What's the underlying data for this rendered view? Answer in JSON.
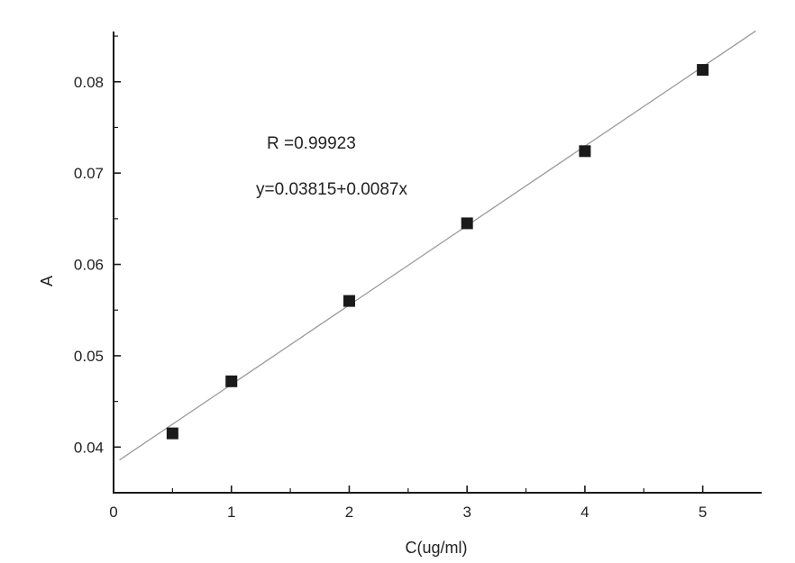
{
  "chart_data": {
    "type": "scatter",
    "title": "",
    "xlabel": "C(ug/ml)",
    "ylabel": "A",
    "xlim": [
      0,
      5.5
    ],
    "ylim": [
      0.035,
      0.0855
    ],
    "xticks": [
      0,
      1,
      2,
      3,
      4,
      5
    ],
    "xtick_labels": [
      "0",
      "1",
      "2",
      "3",
      "4",
      "5"
    ],
    "yticks": [
      0.04,
      0.05,
      0.06,
      0.07,
      0.08
    ],
    "ytick_labels": [
      "0.04",
      "0.05",
      "0.06",
      "0.07",
      "0.08"
    ],
    "grid": false,
    "series": [
      {
        "x": [
          0.5,
          1,
          2,
          3,
          4,
          5
        ],
        "y": [
          0.0415,
          0.0472,
          0.056,
          0.0645,
          0.0724,
          0.0813
        ],
        "marker": "square",
        "color": "#1a1a1a"
      }
    ],
    "fit_line": {
      "intercept": 0.03815,
      "slope": 0.0087,
      "x_range": [
        0.05,
        5.45
      ],
      "color": "#9a9a9a"
    },
    "annotations": [
      {
        "text": "R =0.99923"
      },
      {
        "text": "y=0.03815+0.0087x"
      }
    ]
  }
}
